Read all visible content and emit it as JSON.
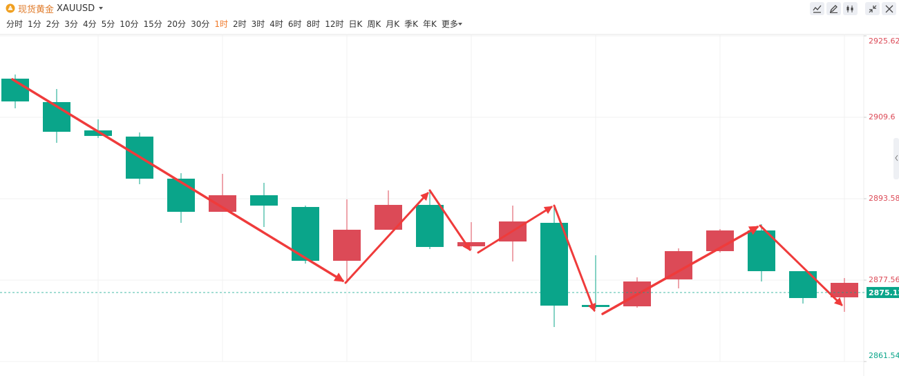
{
  "header": {
    "title": "现货黄金",
    "symbol": "XAUUSD"
  },
  "timeframes": [
    "分时",
    "1分",
    "2分",
    "3分",
    "4分",
    "5分",
    "10分",
    "15分",
    "20分",
    "30分",
    "1时",
    "2时",
    "3时",
    "4时",
    "6时",
    "8时",
    "12时",
    "日K",
    "周K",
    "月K",
    "季K",
    "年K",
    "更多"
  ],
  "active_timeframe": 10,
  "chart_data": {
    "type": "candlestick",
    "up_color": "#dc4a57",
    "down_color": "#0aa58a",
    "open": [
      2917.2,
      2912.59,
      2907.02,
      2905.8,
      2897.52,
      2891.0,
      2894.26,
      2891.95,
      2881.36,
      2887.47,
      2892.36,
      2884.21,
      2885.16,
      2888.83,
      2872.67,
      2872.4,
      2877.7,
      2883.26,
      2887.33,
      2879.32,
      2874.17
    ],
    "high": [
      2918.02,
      2915.17,
      2909.19,
      2906.61,
      2898.6,
      2898.47,
      2896.7,
      2892.22,
      2893.44,
      2895.21,
      2895.21,
      2888.96,
      2892.22,
      2892.22,
      2882.45,
      2878.1,
      2883.8,
      2887.61,
      2888.56,
      2879.32,
      2877.97
    ],
    "low": [
      2911.36,
      2904.58,
      2905.53,
      2896.43,
      2888.83,
      2891.0,
      2888.01,
      2880.82,
      2877.02,
      2887.47,
      2883.67,
      2883.53,
      2881.23,
      2868.33,
      2871.99,
      2872.13,
      2875.93,
      2882.99,
      2877.29,
      2872.94,
      2871.31
    ],
    "close": [
      2912.72,
      2906.75,
      2905.93,
      2897.52,
      2891.0,
      2894.26,
      2892.22,
      2881.36,
      2887.47,
      2892.36,
      2884.08,
      2885.03,
      2889.1,
      2872.54,
      2872.27,
      2877.29,
      2883.26,
      2887.33,
      2879.32,
      2874.03,
      2877.02
    ],
    "ylim": [
      2861.54,
      2925.62
    ],
    "yticks": [
      2861.54,
      2877.56,
      2893.58,
      2909.6,
      2925.62
    ],
    "last_price": 2875.12,
    "grid": true
  }
}
